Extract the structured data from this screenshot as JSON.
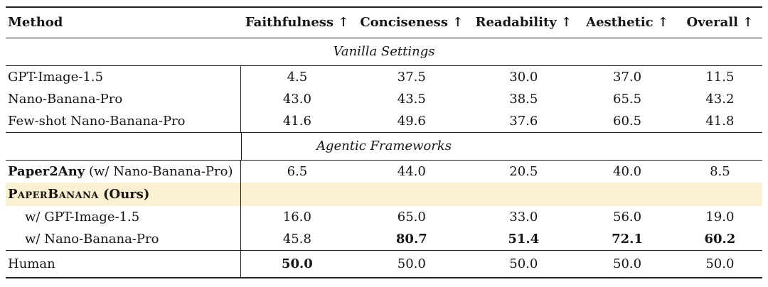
{
  "figure": {
    "type": "results-table",
    "highlight_color": "#fbf0d2",
    "rule_color": "#1f1f1f",
    "text_color": "#161616"
  },
  "table": {
    "columns": [
      "Method",
      "Faithfulness ↑",
      "Conciseness ↑",
      "Readability ↑",
      "Aesthetic ↑",
      "Overall ↑"
    ],
    "sections": [
      {
        "title": "Vanilla Settings",
        "title_vline": false,
        "rows": [
          {
            "method": [
              {
                "text": "GPT-Image-1.5"
              }
            ],
            "values": [
              "4.5",
              "37.5",
              "30.0",
              "37.0",
              "11.5"
            ],
            "bold_values": [],
            "indent": false,
            "highlight": false
          },
          {
            "method": [
              {
                "text": "Nano-Banana-Pro"
              }
            ],
            "values": [
              "43.0",
              "43.5",
              "38.5",
              "65.5",
              "43.2"
            ],
            "bold_values": [],
            "indent": false,
            "highlight": false
          },
          {
            "method": [
              {
                "text": "Few-shot Nano-Banana-Pro"
              }
            ],
            "values": [
              "41.6",
              "49.6",
              "37.6",
              "60.5",
              "41.8"
            ],
            "bold_values": [],
            "indent": false,
            "highlight": false
          }
        ]
      },
      {
        "title": "Agentic Frameworks",
        "title_vline": true,
        "rows": [
          {
            "method": [
              {
                "text": "Paper2Any",
                "bold": true
              },
              {
                "text": " (w/ Nano-Banana-Pro)"
              }
            ],
            "values": [
              "6.5",
              "44.0",
              "20.5",
              "40.0",
              "8.5"
            ],
            "bold_values": [],
            "indent": false,
            "highlight": false
          },
          {
            "method": [
              {
                "text": "PaperBanana",
                "bold": true,
                "smallcaps": true
              },
              {
                "text": " (Ours)",
                "bold": true
              }
            ],
            "values": [
              "",
              "",
              "",
              "",
              ""
            ],
            "bold_values": [],
            "indent": false,
            "highlight": true
          },
          {
            "method": [
              {
                "text": "w/ GPT-Image-1.5"
              }
            ],
            "values": [
              "16.0",
              "65.0",
              "33.0",
              "56.0",
              "19.0"
            ],
            "bold_values": [],
            "indent": true,
            "highlight": false
          },
          {
            "method": [
              {
                "text": "w/ Nano-Banana-Pro"
              }
            ],
            "values": [
              "45.8",
              "80.7",
              "51.4",
              "72.1",
              "60.2"
            ],
            "bold_values": [
              1,
              2,
              3,
              4
            ],
            "indent": true,
            "highlight": false
          }
        ]
      },
      {
        "title": null,
        "title_vline": false,
        "rows": [
          {
            "method": [
              {
                "text": "Human"
              }
            ],
            "values": [
              "50.0",
              "50.0",
              "50.0",
              "50.0",
              "50.0"
            ],
            "bold_values": [
              0
            ],
            "indent": false,
            "highlight": false
          }
        ]
      }
    ]
  }
}
